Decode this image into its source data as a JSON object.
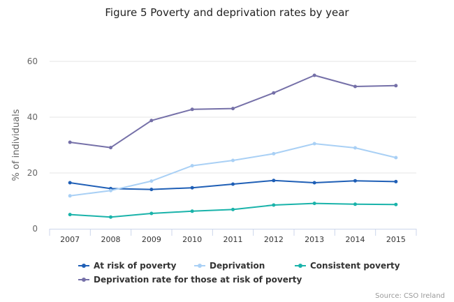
{
  "chart_data": {
    "type": "line",
    "title": "Figure 5 Poverty and deprivation rates by year",
    "xlabel": "",
    "ylabel": "% of individuals",
    "ylim": [
      0,
      60
    ],
    "yticks": [
      0,
      20,
      40,
      60
    ],
    "ytick_labels": [
      "0",
      "20",
      "40",
      "60"
    ],
    "grid": true,
    "legend_position": "bottom",
    "categories": [
      "2007",
      "2008",
      "2009",
      "2010",
      "2011",
      "2012",
      "2013",
      "2014",
      "2015"
    ],
    "series": [
      {
        "name": "At risk of poverty",
        "color": "#1f5fb6",
        "values": [
          16.5,
          14.4,
          14.1,
          14.7,
          16.0,
          17.3,
          16.5,
          17.2,
          16.9
        ]
      },
      {
        "name": "Deprivation",
        "color": "#a9d0f5",
        "values": [
          11.8,
          13.7,
          17.1,
          22.6,
          24.5,
          26.9,
          30.5,
          29.0,
          25.5
        ]
      },
      {
        "name": "Consistent poverty",
        "color": "#1ab3aa",
        "values": [
          5.1,
          4.2,
          5.5,
          6.3,
          6.9,
          8.5,
          9.1,
          8.8,
          8.7
        ]
      },
      {
        "name": "Deprivation rate for those at risk of poverty",
        "color": "#7570a8",
        "values": [
          31.0,
          29.1,
          38.8,
          42.8,
          43.1,
          48.7,
          55.0,
          51.0,
          51.3
        ]
      }
    ],
    "source": "Source: CSO Ireland"
  }
}
